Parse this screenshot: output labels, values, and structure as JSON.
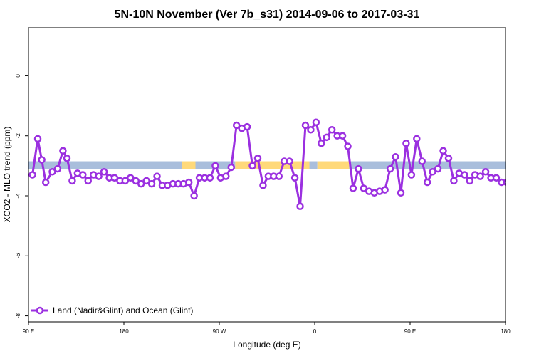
{
  "chart_data": {
    "type": "line",
    "title": "5N-10N November (Ver 7b_s31)   2014-09-06 to 2017-03-31",
    "xlabel": "Longitude (deg E)",
    "ylabel": "XCO2 - MLO trend (ppm)",
    "xlim": [
      90,
      270
    ],
    "ylim": [
      -8.2,
      1.6
    ],
    "x_ticks": [
      {
        "value": 90,
        "label": "90 E"
      },
      {
        "value": 126,
        "label": "180"
      },
      {
        "value": 162,
        "label": "90 W"
      },
      {
        "value": 198,
        "label": "0"
      },
      {
        "value": 234,
        "label": "90 E"
      },
      {
        "value": 270,
        "label": "180"
      }
    ],
    "y_ticks": [
      {
        "value": 0,
        "label": "0"
      },
      {
        "value": -2,
        "label": "-2"
      },
      {
        "value": -4,
        "label": "-4"
      },
      {
        "value": -6,
        "label": "-6"
      },
      {
        "value": -8,
        "label": "-8"
      }
    ],
    "grid": false,
    "legend_position": "bottom-left",
    "colors": {
      "series": "#9b30e0",
      "land_band": "#ffd97a",
      "ocean_band": "#a9bedc"
    },
    "background_band": {
      "y_range": [
        -3.1,
        -2.85
      ],
      "segments": [
        {
          "type": "ocean",
          "x_range": [
            90,
            148
          ]
        },
        {
          "type": "land",
          "x_range": [
            148,
            153
          ]
        },
        {
          "type": "ocean",
          "x_range": [
            153,
            168
          ]
        },
        {
          "type": "land",
          "x_range": [
            168,
            196
          ]
        },
        {
          "type": "ocean",
          "x_range": [
            196,
            199
          ]
        },
        {
          "type": "land",
          "x_range": [
            199,
            211
          ]
        },
        {
          "type": "ocean",
          "x_range": [
            211,
            270
          ]
        }
      ]
    },
    "series": [
      {
        "name": "Land (Nadir&Glint) and Ocean (Glint)",
        "x": [
          91.5,
          93.5,
          95.0,
          96.5,
          99.0,
          101.0,
          103.0,
          104.5,
          106.5,
          108.5,
          110.5,
          112.5,
          114.5,
          116.5,
          118.5,
          120.5,
          122.5,
          124.5,
          126.5,
          128.5,
          130.5,
          132.5,
          134.5,
          136.5,
          138.5,
          140.5,
          142.5,
          144.5,
          146.5,
          148.5,
          150.5,
          152.5,
          154.5,
          156.5,
          158.5,
          160.5,
          162.5,
          164.5,
          166.5,
          168.5,
          170.5,
          172.5,
          174.5,
          176.5,
          178.5,
          180.5,
          182.5,
          184.5,
          186.5,
          188.5,
          190.5,
          192.5,
          194.5,
          196.5,
          198.5,
          200.5,
          202.5,
          204.5,
          206.5,
          208.5,
          210.5,
          212.5,
          214.5,
          216.5,
          218.5,
          220.5,
          222.5,
          224.5,
          226.5,
          228.5,
          230.5,
          232.5,
          234.5,
          236.5,
          238.5,
          240.5,
          242.5,
          244.5,
          246.5,
          248.5,
          250.5,
          252.5,
          254.5,
          256.5,
          258.5,
          260.5,
          262.5,
          264.5,
          266.5,
          268.5,
          270.5
        ],
        "values": [
          -3.3,
          -2.1,
          -2.8,
          -3.55,
          -3.2,
          -3.1,
          -2.5,
          -2.75,
          -3.5,
          -3.25,
          -3.3,
          -3.5,
          -3.3,
          -3.35,
          -3.2,
          -3.4,
          -3.4,
          -3.5,
          -3.5,
          -3.4,
          -3.5,
          -3.6,
          -3.5,
          -3.6,
          -3.35,
          -3.65,
          -3.65,
          -3.6,
          -3.6,
          -3.6,
          -3.55,
          -4.0,
          -3.4,
          -3.4,
          -3.4,
          -3.0,
          -3.4,
          -3.35,
          -3.05,
          -1.65,
          -1.75,
          -1.7,
          -3.0,
          -2.75,
          -3.65,
          -3.35,
          -3.35,
          -3.35,
          -2.85,
          -2.85,
          -3.4,
          -4.35,
          -1.65,
          -1.8,
          -1.55,
          -2.25,
          -2.05,
          -1.8,
          -2.0,
          -2.0,
          -2.35,
          -3.75,
          -3.1,
          -3.75,
          -3.85,
          -3.9,
          -3.85,
          -3.8,
          -3.1,
          -2.7,
          -3.9,
          -2.25,
          -3.3,
          -2.1,
          -2.85,
          -3.55,
          -3.2,
          -3.1,
          -2.5,
          -2.75,
          -3.5,
          -3.25,
          -3.3,
          -3.5,
          -3.3,
          -3.35,
          -3.2,
          -3.4,
          -3.4,
          -3.55,
          -3.55
        ]
      }
    ]
  }
}
